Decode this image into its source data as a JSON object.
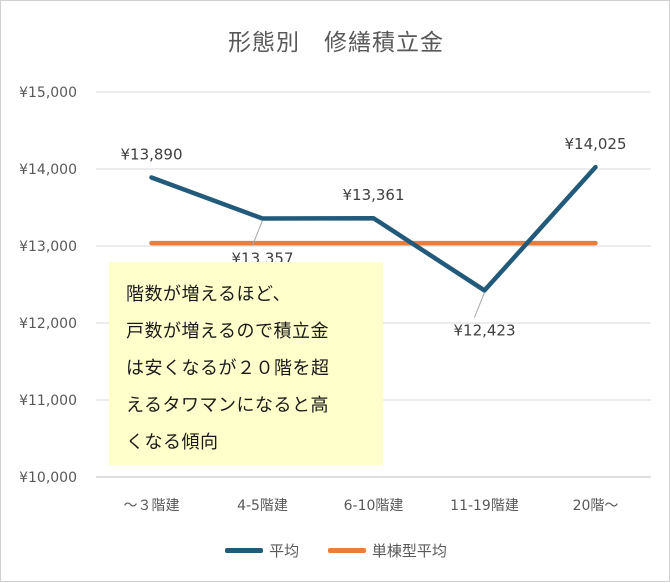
{
  "chart_data": {
    "type": "line",
    "title": "形態別　修繕積立金",
    "categories": [
      "～３階建",
      "4-5階建",
      "6-10階建",
      "11-19階建",
      "20階～"
    ],
    "series": [
      {
        "name": "平均",
        "values": [
          13890,
          13357,
          13361,
          12423,
          14025
        ],
        "color": "#215a7a"
      },
      {
        "name": "単棟型平均",
        "values": [
          13038,
          13038,
          13038,
          13038,
          13038
        ],
        "color": "#ea7d3c"
      }
    ],
    "data_labels": [
      "¥13,890",
      "¥13,357",
      "¥13,361",
      "¥12,423",
      "¥14,025"
    ],
    "y_ticks": [
      "¥10,000",
      "¥11,000",
      "¥12,000",
      "¥13,000",
      "¥14,000",
      "¥15,000"
    ],
    "ylim": [
      10000,
      15000
    ],
    "grid": true,
    "legend_position": "bottom"
  },
  "note": {
    "lines": [
      "階数が増えるほど、",
      "戸数が増えるので積立金",
      "は安くなるが２０階を超",
      "えるタワマンになると高",
      "くなる傾向"
    ]
  }
}
